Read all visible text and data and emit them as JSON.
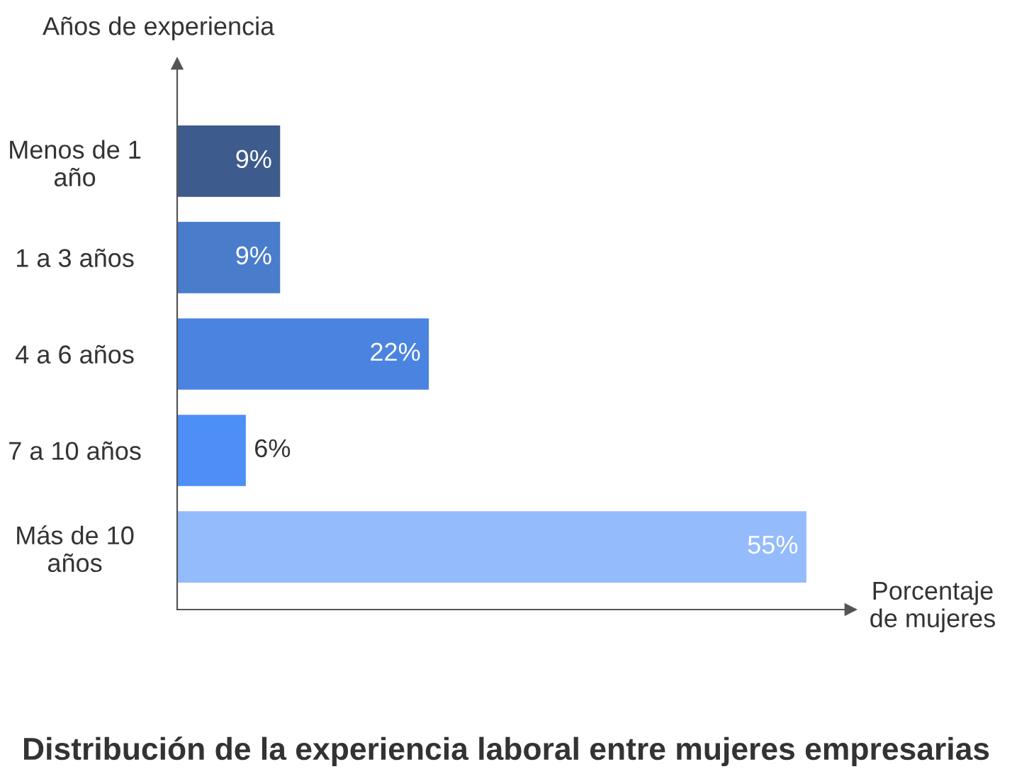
{
  "chart_data": {
    "type": "bar",
    "orientation": "horizontal",
    "title": "Distribución de la experiencia laboral entre mujeres empresarias",
    "xlabel": "Porcentaje de mujeres",
    "ylabel": "Años de experiencia",
    "categories": [
      "Menos de 1 año",
      "1 a 3 años",
      "4 a 6 años",
      "7 a 10 años",
      "Más de 10 años"
    ],
    "values": [
      9,
      9,
      22,
      6,
      55
    ],
    "colors": [
      "#3d5b8c",
      "#4a7ccc",
      "#4a84e0",
      "#4d8ef7",
      "#94bbfb"
    ],
    "value_labels": [
      "9%",
      "9%",
      "22%",
      "6%",
      "55%"
    ],
    "grid": false,
    "legend": false
  }
}
